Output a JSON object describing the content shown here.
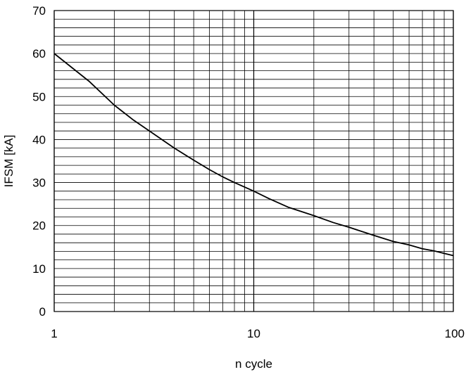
{
  "chart_data": {
    "type": "line",
    "title": "",
    "xlabel": "n cycle",
    "ylabel": "IFSM [kA]",
    "xscale": "log",
    "xlim": [
      1,
      100
    ],
    "ylim": [
      0,
      70
    ],
    "grid": true,
    "x_ticks": [
      "1",
      "10",
      "100"
    ],
    "y_ticks": [
      "0",
      "10",
      "20",
      "30",
      "40",
      "50",
      "60",
      "70"
    ],
    "series": [
      {
        "color": "#000000",
        "x": [
          1,
          1.5,
          2,
          2.5,
          3,
          4,
          5,
          6,
          7,
          8,
          10,
          12,
          15,
          20,
          25,
          30,
          40,
          50,
          60,
          70,
          80,
          100
        ],
        "y": [
          60,
          53.5,
          48,
          44.5,
          42,
          38,
          35.2,
          33,
          31.3,
          30,
          28,
          26.2,
          24.2,
          22.3,
          20.7,
          19.6,
          17.7,
          16.3,
          15.5,
          14.6,
          14.1,
          13
        ]
      }
    ]
  }
}
